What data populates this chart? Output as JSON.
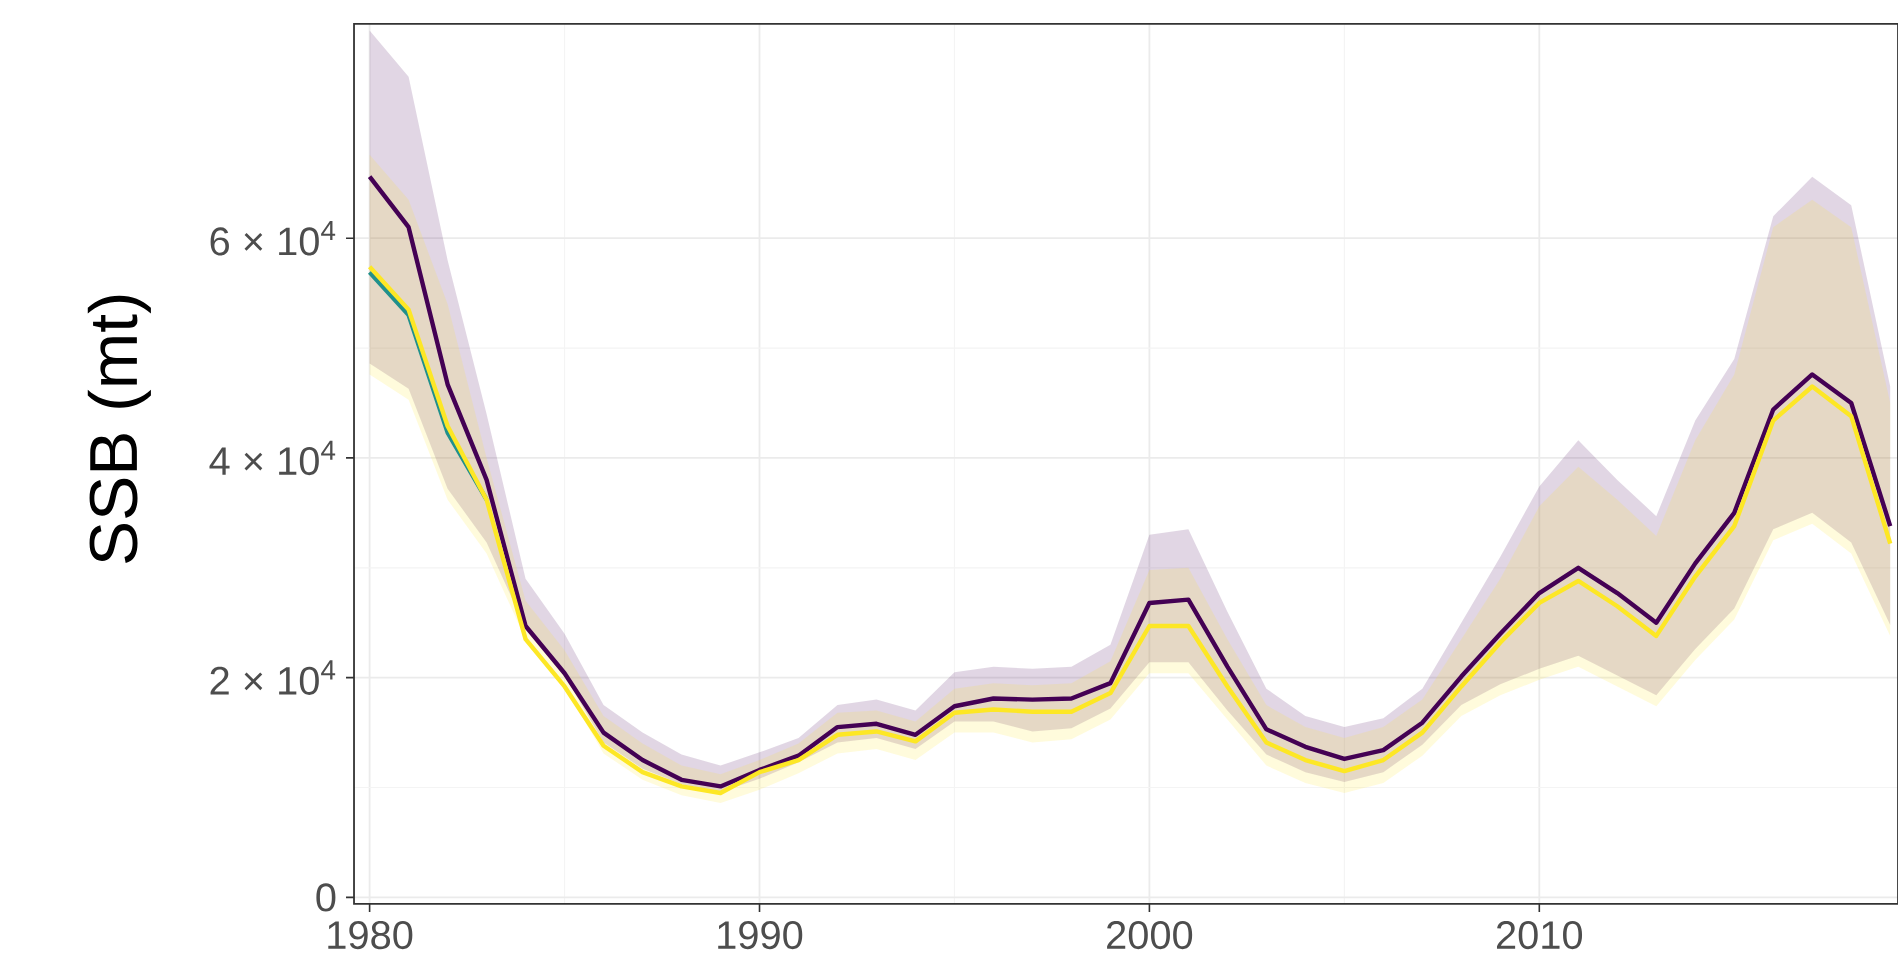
{
  "chart_data": {
    "type": "line",
    "ylabel": "SSB (mt)",
    "x": [
      1980,
      1981,
      1982,
      1983,
      1984,
      1985,
      1986,
      1987,
      1988,
      1989,
      1990,
      1991,
      1992,
      1993,
      1994,
      1995,
      1996,
      1997,
      1998,
      1999,
      2000,
      2001,
      2002,
      2003,
      2004,
      2005,
      2006,
      2007,
      2008,
      2009,
      2010,
      2011,
      2012,
      2013,
      2014,
      2015,
      2016,
      2017,
      2018,
      2019
    ],
    "xlim": [
      1979.6,
      2019.2
    ],
    "xticks": [
      1980,
      1990,
      2000,
      2010
    ],
    "ylim": [
      -600,
      79500
    ],
    "yticks": [
      0,
      {
        "value": 20000,
        "label": "2 × 10$^{4}$"
      },
      {
        "value": 40000,
        "label": "4 × 10$^{4}$"
      },
      {
        "value": 60000,
        "label": "6 × 10$^{4}$"
      }
    ],
    "grid": true,
    "line_style": "solid",
    "series": [
      {
        "color": "#440154",
        "values": [
          65600,
          61000,
          46700,
          38000,
          24700,
          20400,
          15000,
          12500,
          10700,
          10100,
          11600,
          12900,
          15500,
          15800,
          14800,
          17400,
          18100,
          18000,
          18100,
          19500,
          26800,
          27100,
          21000,
          15300,
          13700,
          12600,
          13400,
          15900,
          20100,
          24000,
          27700,
          30000,
          27700,
          25000,
          30400,
          35000,
          44400,
          47600,
          45000,
          33800
        ],
        "upper": [
          78900,
          74700,
          58000,
          44000,
          29000,
          24000,
          17500,
          15000,
          13000,
          12000,
          13200,
          14500,
          17500,
          18000,
          17000,
          20500,
          21000,
          20800,
          21000,
          23000,
          33000,
          33500,
          26000,
          19000,
          16500,
          15500,
          16300,
          19000,
          25000,
          31000,
          37400,
          41600,
          38000,
          34700,
          43400,
          49000,
          62000,
          65600,
          63000,
          46500
        ],
        "lower": [
          48600,
          46300,
          37200,
          32300,
          24500,
          20200,
          14100,
          11700,
          10300,
          9600,
          10800,
          12300,
          14100,
          14500,
          13500,
          16000,
          16000,
          15100,
          15400,
          17200,
          21400,
          21400,
          17000,
          13000,
          11400,
          10500,
          11400,
          13900,
          17500,
          19400,
          20800,
          22000,
          20200,
          18400,
          22600,
          26300,
          33500,
          35000,
          32300,
          24800
        ]
      },
      {
        "color": "#21908c",
        "values": [
          56900,
          53000,
          42300,
          36200,
          null,
          null,
          null,
          null,
          null,
          null,
          null,
          null,
          null,
          null,
          null,
          null,
          null,
          null,
          null,
          null,
          null,
          null,
          null,
          null,
          null,
          null,
          null,
          null,
          null,
          null,
          null,
          null,
          null,
          null,
          null,
          null,
          null,
          null,
          null,
          null
        ]
      },
      {
        "color": "#fde725",
        "values": [
          57400,
          53500,
          42900,
          36200,
          23500,
          19200,
          13800,
          11400,
          10100,
          9500,
          11400,
          12500,
          14800,
          15100,
          14200,
          16800,
          17100,
          16900,
          16900,
          18600,
          24700,
          24700,
          19200,
          14100,
          12500,
          11500,
          12500,
          15000,
          19200,
          23200,
          26800,
          28800,
          26500,
          23800,
          29200,
          33800,
          43400,
          46500,
          43800,
          32200
        ],
        "upper": [
          67600,
          63500,
          54000,
          40000,
          27000,
          22500,
          16500,
          14000,
          12000,
          11200,
          12500,
          14000,
          16800,
          17000,
          16000,
          19000,
          19500,
          19300,
          19500,
          21500,
          29800,
          30000,
          23500,
          17500,
          15500,
          14500,
          15500,
          18000,
          23500,
          29000,
          35600,
          39200,
          36200,
          32900,
          41600,
          47600,
          61000,
          63500,
          61000,
          45000
        ],
        "lower": [
          47600,
          45300,
          36200,
          31300,
          23500,
          19200,
          13100,
          10700,
          9300,
          8600,
          9800,
          11300,
          13100,
          13500,
          12500,
          15000,
          15000,
          14100,
          14400,
          16200,
          20400,
          20400,
          16200,
          12000,
          10400,
          9500,
          10400,
          12900,
          16500,
          18400,
          19800,
          21000,
          19200,
          17400,
          21600,
          25300,
          32500,
          34000,
          31300,
          23800
        ]
      }
    ]
  }
}
